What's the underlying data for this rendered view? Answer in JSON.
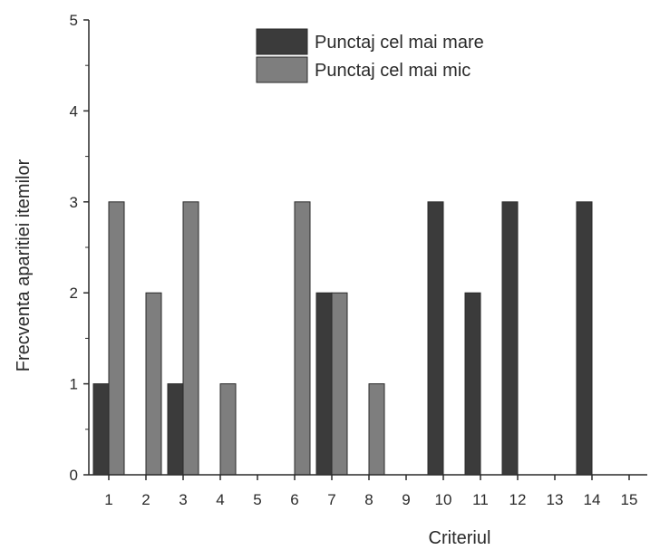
{
  "chart_data": {
    "type": "bar",
    "title": "",
    "xlabel": "Criteriul",
    "ylabel": "Frecventa aparitiei itemilor",
    "categories": [
      "1",
      "2",
      "3",
      "4",
      "5",
      "6",
      "7",
      "8",
      "9",
      "10",
      "11",
      "12",
      "13",
      "14",
      "15"
    ],
    "ylim": [
      0,
      5
    ],
    "yticks": [
      "0",
      "1",
      "2",
      "3",
      "4",
      "5"
    ],
    "grid": false,
    "legend_position": "top-right",
    "series": [
      {
        "name": "Punctaj cel mai mare",
        "color": "#3b3b3b",
        "values": [
          1,
          0,
          1,
          0,
          0,
          0,
          2,
          0,
          0,
          3,
          2,
          3,
          0,
          3,
          0
        ]
      },
      {
        "name": "Punctaj cel mai mic",
        "color": "#7e7e7e",
        "values": [
          3,
          2,
          3,
          1,
          0,
          3,
          2,
          1,
          0,
          0,
          0,
          0,
          0,
          0,
          0
        ]
      }
    ]
  }
}
